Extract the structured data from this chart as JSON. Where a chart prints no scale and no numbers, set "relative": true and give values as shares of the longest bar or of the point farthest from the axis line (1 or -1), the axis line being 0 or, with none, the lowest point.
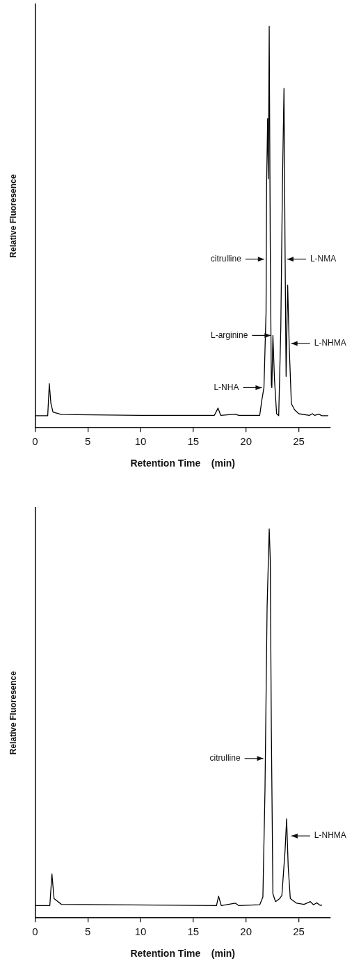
{
  "chart_data": [
    {
      "type": "line",
      "xlabel": "Retention Time    (min)",
      "ylabel": "Relative Fluoresence",
      "relative": true,
      "xlim": [
        0,
        28
      ],
      "xticks": [
        0,
        5,
        10,
        15,
        20,
        25
      ],
      "x": [
        0,
        1.2,
        1.35,
        1.5,
        1.7,
        2.5,
        10,
        17.0,
        17.35,
        17.6,
        19.0,
        19.3,
        21.3,
        21.5,
        21.7,
        21.9,
        21.95,
        22.05,
        22.12,
        22.2,
        22.3,
        22.4,
        22.45,
        22.55,
        22.7,
        22.9,
        23.1,
        23.3,
        23.45,
        23.6,
        23.7,
        23.8,
        23.95,
        24.1,
        24.3,
        24.6,
        25.0,
        26.0,
        26.3,
        26.5,
        26.9,
        27.2,
        27.8
      ],
      "values": [
        0.03,
        0.03,
        0.11,
        0.061,
        0.039,
        0.033,
        0.031,
        0.031,
        0.049,
        0.031,
        0.034,
        0.031,
        0.031,
        0.069,
        0.1,
        0.288,
        0.6,
        0.77,
        0.62,
        1.0,
        0.45,
        0.108,
        0.1,
        0.23,
        0.12,
        0.035,
        0.03,
        0.25,
        0.6,
        0.845,
        0.45,
        0.128,
        0.355,
        0.2,
        0.06,
        0.045,
        0.035,
        0.031,
        0.035,
        0.031,
        0.034,
        0.03,
        0.03
      ],
      "color": "#000000",
      "annotations": [
        {
          "text": "citrulline",
          "x": 21.92,
          "y": 0.42
        },
        {
          "text": "L-NMA",
          "x": 23.71,
          "y": 0.42
        },
        {
          "text": "L-arginine",
          "x": 22.55,
          "y": 0.23
        },
        {
          "text": "L-NHMA",
          "x": 24.09,
          "y": 0.21
        },
        {
          "text": "L-NHA",
          "x": 21.7,
          "y": 0.1
        }
      ]
    },
    {
      "type": "line",
      "xlabel": "Retention Time    (min)",
      "ylabel": "Relative Fluoresence",
      "relative": true,
      "xlim": [
        0,
        28
      ],
      "xticks": [
        0,
        5,
        10,
        15,
        20,
        25
      ],
      "x": [
        0,
        1.4,
        1.6,
        1.8,
        2.5,
        17.2,
        17.4,
        17.65,
        19.0,
        19.3,
        21.3,
        21.6,
        21.8,
        22.0,
        22.2,
        22.3,
        22.4,
        22.55,
        22.8,
        23.2,
        23.4,
        23.7,
        23.85,
        24.0,
        24.2,
        24.8,
        25.5,
        26.1,
        26.4,
        26.7,
        27.0,
        27.2
      ],
      "values": [
        0.032,
        0.032,
        0.113,
        0.05,
        0.035,
        0.032,
        0.056,
        0.032,
        0.038,
        0.032,
        0.034,
        0.054,
        0.33,
        0.8,
        1.0,
        0.92,
        0.49,
        0.062,
        0.042,
        0.05,
        0.058,
        0.172,
        0.255,
        0.132,
        0.05,
        0.038,
        0.035,
        0.042,
        0.034,
        0.039,
        0.033,
        0.033
      ],
      "color": "#000000",
      "annotations": [
        {
          "text": "citrulline",
          "x": 21.84,
          "y": 0.41
        },
        {
          "text": "L-NHMA",
          "x": 24.1,
          "y": 0.211
        }
      ]
    }
  ]
}
